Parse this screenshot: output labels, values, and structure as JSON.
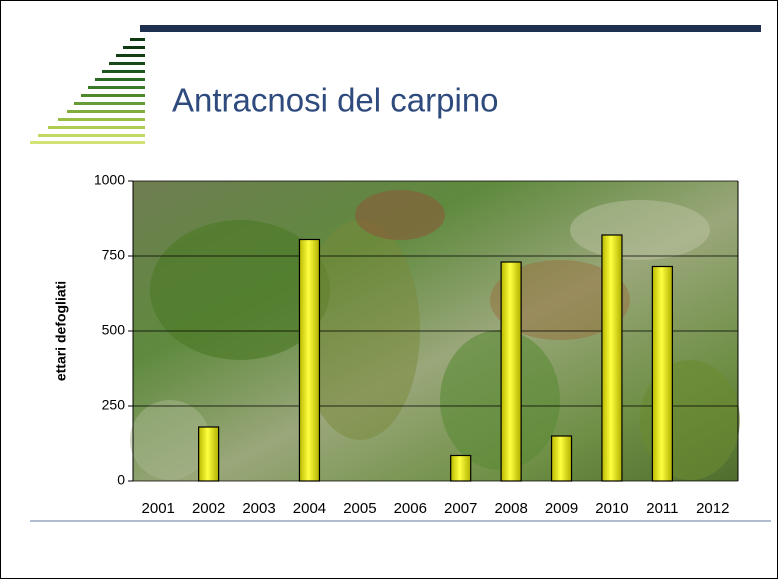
{
  "chart_data": {
    "type": "bar",
    "title": "Antracnosi del carpino",
    "y_label": "ettari defogliati",
    "categories": [
      "2001",
      "2002",
      "2003",
      "2004",
      "2005",
      "2006",
      "2007",
      "2008",
      "2009",
      "2010",
      "2011",
      "2012"
    ],
    "values": [
      0,
      180,
      0,
      805,
      0,
      0,
      85,
      730,
      150,
      820,
      715,
      0
    ],
    "color": "#f0f000",
    "ylim": [
      0,
      1000
    ],
    "yticks": [
      0,
      250,
      500,
      750,
      1000
    ],
    "grid": true
  }
}
